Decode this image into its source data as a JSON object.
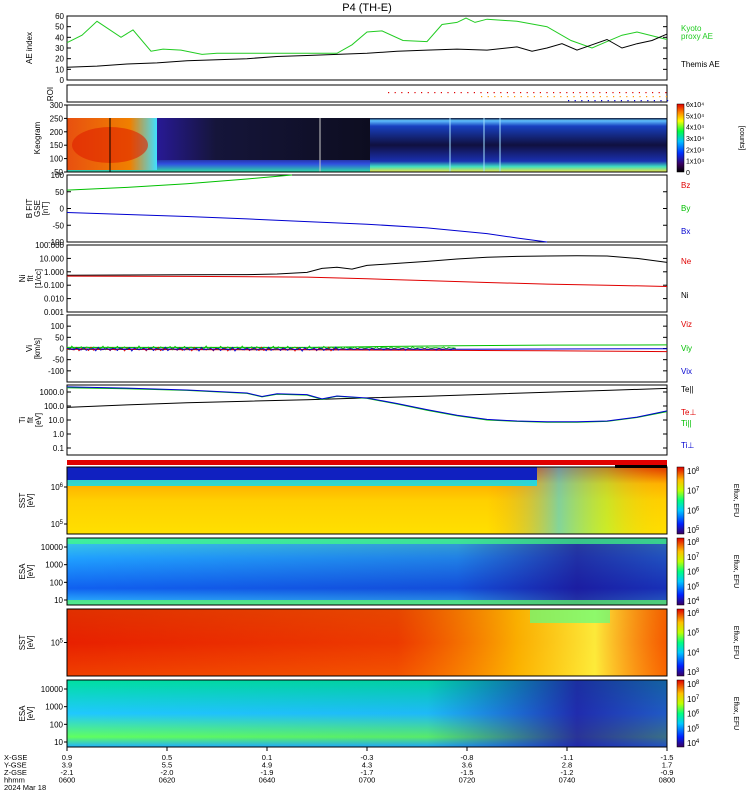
{
  "title": "P4 (TH-E)",
  "colors": {
    "black": "#000000",
    "red": "#e00000",
    "green": "#00c000",
    "blue": "#0000d0",
    "kyoto": "#22cc22"
  },
  "chart_data": [
    {
      "id": "ae",
      "type": "line",
      "ylabel": "AE index",
      "ylim": [
        0,
        60
      ],
      "yticks": [
        "0",
        "10",
        "20",
        "30",
        "40",
        "50",
        "60"
      ],
      "right_labels": [
        {
          "text": "Kyoto",
          "color": "#22cc22"
        },
        {
          "text": "proxy AE",
          "color": "#22cc22"
        },
        {
          "text": "Themis AE",
          "color": "#000000"
        }
      ],
      "series": [
        {
          "name": "Kyoto proxy AE",
          "color": "#22cc22",
          "x": [
            0,
            5,
            10,
            18,
            22,
            28,
            32,
            38,
            45,
            50,
            60,
            70,
            80,
            90,
            95,
            100,
            105,
            112,
            120,
            125,
            130,
            133,
            136,
            140,
            150,
            160,
            168,
            175,
            180,
            185,
            190,
            200
          ],
          "y": [
            35,
            42,
            55,
            40,
            47,
            27,
            29,
            28,
            24,
            25,
            25,
            25,
            25,
            25,
            33,
            45,
            46,
            37,
            36,
            52,
            54,
            58,
            54,
            57,
            55,
            50,
            37,
            30,
            36,
            42,
            45,
            38
          ]
        },
        {
          "name": "Themis AE",
          "color": "#000000",
          "x": [
            0,
            10,
            20,
            30,
            40,
            50,
            60,
            70,
            80,
            90,
            100,
            110,
            120,
            130,
            140,
            150,
            155,
            160,
            165,
            170,
            175,
            180,
            185,
            190,
            195,
            200
          ],
          "y": [
            12,
            13,
            15,
            16,
            18,
            19,
            20,
            22,
            23,
            24,
            25,
            27,
            28,
            29,
            28,
            31,
            27,
            30,
            34,
            28,
            33,
            38,
            30,
            34,
            37,
            43
          ]
        }
      ]
    },
    {
      "id": "roi",
      "type": "scatter",
      "ylabel": "ROI",
      "rows": [
        {
          "color": "#e00000",
          "x_start": 107
        },
        {
          "color": "#ff9900",
          "x_start": 138
        },
        {
          "color": "#0000d0",
          "x_start": 167
        }
      ]
    },
    {
      "id": "keogram",
      "type": "heatmap",
      "ylabel": "Keogram",
      "ylim": [
        50,
        300
      ],
      "yticks": [
        "50",
        "100",
        "150",
        "200",
        "250",
        "300"
      ],
      "colorbar": {
        "label": "[counts]",
        "ticks": [
          "0",
          "1x10⁴",
          "2x10⁴",
          "3x10⁴",
          "4x10⁴",
          "5x10⁴",
          "6x10⁴"
        ]
      }
    },
    {
      "id": "bfield",
      "type": "line",
      "ylabel": "B FIT\nGSE\n[nT]",
      "ylim": [
        -100,
        100
      ],
      "yticks": [
        "-100",
        "-50",
        "0",
        "50",
        "100"
      ],
      "right_labels": [
        {
          "text": "Bz",
          "color": "#e00000"
        },
        {
          "text": "By",
          "color": "#00c000"
        },
        {
          "text": "Bx",
          "color": "#0000d0"
        }
      ],
      "series": [
        {
          "name": "By",
          "color": "#00c000",
          "x": [
            0,
            20,
            40,
            60,
            75
          ],
          "y": [
            55,
            63,
            74,
            88,
            100
          ]
        },
        {
          "name": "Bx",
          "color": "#0000d0",
          "x": [
            0,
            20,
            40,
            60,
            80,
            100,
            120,
            140,
            150,
            160
          ],
          "y": [
            -12,
            -18,
            -24,
            -31,
            -39,
            -47,
            -58,
            -75,
            -88,
            -100
          ]
        }
      ]
    },
    {
      "id": "density",
      "type": "line",
      "ylabel": "Ni\nfit\n[1/cc]",
      "log": true,
      "ylim_exp": [
        -3,
        2
      ],
      "yticks": [
        "0.001",
        "0.010",
        "0.100",
        "1.000",
        "10.000",
        "100.000"
      ],
      "right_labels": [
        {
          "text": "Ne",
          "color": "#e00000"
        },
        {
          "text": "Ni",
          "color": "#000000"
        }
      ],
      "series": [
        {
          "name": "Ni",
          "color": "#000000",
          "x": [
            0,
            20,
            40,
            60,
            70,
            80,
            85,
            90,
            95,
            100,
            110,
            120,
            130,
            140,
            150,
            160,
            170,
            180,
            190,
            200
          ],
          "y": [
            0.55,
            0.58,
            0.6,
            0.62,
            0.68,
            0.9,
            1.8,
            2.2,
            1.6,
            3.0,
            4.2,
            6.0,
            9.0,
            12.0,
            14.0,
            15.0,
            16.0,
            15.0,
            10.0,
            5.0
          ]
        },
        {
          "name": "Ne",
          "color": "#e00000",
          "x": [
            0,
            40,
            80,
            100,
            120,
            140,
            160,
            180,
            200
          ],
          "y": [
            0.48,
            0.45,
            0.4,
            0.3,
            0.22,
            0.16,
            0.12,
            0.1,
            0.08
          ]
        }
      ]
    },
    {
      "id": "velocity",
      "type": "line",
      "ylabel": "Vi\n[km/s]",
      "ylim": [
        -150,
        150
      ],
      "yticks": [
        "-100",
        "-50",
        "0",
        "50",
        "100"
      ],
      "right_labels": [
        {
          "text": "Viz",
          "color": "#e00000"
        },
        {
          "text": "Viy",
          "color": "#00c000"
        },
        {
          "text": "Vix",
          "color": "#0000d0"
        }
      ],
      "series": [
        {
          "name": "Viy",
          "color": "#00c000",
          "x": [
            0,
            80,
            100,
            130,
            160,
            200
          ],
          "y": [
            5,
            5,
            8,
            12,
            15,
            16
          ]
        },
        {
          "name": "Vix",
          "color": "#0000d0",
          "x": [
            0,
            80,
            130,
            200
          ],
          "y": [
            -2,
            -4,
            -3,
            -1
          ]
        },
        {
          "name": "Viz",
          "color": "#e00000",
          "x": [
            0,
            80,
            120,
            160,
            200
          ],
          "y": [
            -4,
            -6,
            -8,
            -10,
            -14
          ]
        }
      ]
    },
    {
      "id": "temperature",
      "type": "line",
      "ylabel": "Ti\nfit\n[eV]",
      "log": true,
      "ylim_exp": [
        -1.5,
        3.5
      ],
      "yticks": [
        "0.1",
        "1.0",
        "10.0",
        "100.0",
        "1000.0"
      ],
      "right_labels": [
        {
          "text": "Te||",
          "color": "#000000"
        },
        {
          "text": "Te⊥",
          "color": "#e00000"
        },
        {
          "text": "Ti||",
          "color": "#00c000"
        },
        {
          "text": "Ti⊥",
          "color": "#0000d0"
        }
      ],
      "series": [
        {
          "name": "Te||",
          "color": "#000000",
          "x": [
            0,
            20,
            40,
            60,
            80,
            100,
            120,
            140,
            160,
            180,
            200
          ],
          "y": [
            80,
            120,
            170,
            220,
            280,
            380,
            500,
            700,
            950,
            1300,
            1800
          ]
        },
        {
          "name": "Ti||",
          "color": "#00c000",
          "x": [
            0,
            20,
            40,
            60,
            65,
            70,
            80,
            85,
            90,
            100,
            110,
            120,
            130,
            140,
            150,
            160,
            170,
            180,
            190,
            200
          ],
          "y": [
            2000,
            1700,
            1300,
            800,
            450,
            700,
            600,
            300,
            500,
            350,
            140,
            50,
            20,
            10,
            8,
            7,
            7,
            8,
            15,
            40
          ]
        },
        {
          "name": "Ti⊥",
          "color": "#0000d0",
          "x": [
            0,
            20,
            40,
            60,
            65,
            70,
            80,
            85,
            90,
            100,
            110,
            120,
            130,
            140,
            150,
            160,
            170,
            180,
            190,
            200
          ],
          "y": [
            2300,
            1900,
            1400,
            850,
            480,
            750,
            650,
            320,
            520,
            370,
            150,
            55,
            22,
            11,
            8.5,
            7.5,
            7.5,
            8.5,
            16,
            45
          ]
        }
      ]
    },
    {
      "id": "sst-eflux-1",
      "type": "heatmap",
      "ylabel": "SST\n[eV]",
      "yticks_exp": [
        {
          "base": "10",
          "exp": "5"
        },
        {
          "base": "10",
          "exp": "6"
        }
      ],
      "colorbar": {
        "label": "Eflux, EFU",
        "ticks_exp": [
          "5",
          "6",
          "7",
          "8"
        ]
      }
    },
    {
      "id": "esa-eflux-1",
      "type": "heatmap",
      "ylabel": "ESA\n[eV]",
      "yticks": [
        "10",
        "100",
        "1000",
        "10000"
      ],
      "colorbar": {
        "label": "Eflux, EFU",
        "ticks_exp": [
          "4",
          "5",
          "6",
          "7",
          "8"
        ]
      }
    },
    {
      "id": "sst-eflux-2",
      "type": "heatmap",
      "ylabel": "SST\n[eV]",
      "yticks_exp": [
        {
          "base": "10",
          "exp": "5"
        }
      ],
      "colorbar": {
        "label": "Eflux, EFU",
        "ticks_exp": [
          "3",
          "4",
          "5",
          "6"
        ]
      }
    },
    {
      "id": "esa-eflux-2",
      "type": "heatmap",
      "ylabel": "ESA\n[eV]",
      "yticks": [
        "10",
        "100",
        "1000",
        "10000"
      ],
      "colorbar": {
        "label": "Eflux, EFU",
        "ticks_exp": [
          "4",
          "5",
          "6",
          "7",
          "8"
        ]
      }
    }
  ],
  "xaxis": {
    "row_labels": [
      "X-GSE",
      "Y-GSE",
      "Z-GSE",
      "hhmm",
      "2024 Mar 18"
    ],
    "columns": [
      {
        "x": "0.9",
        "y": "3.9",
        "z": "-2.1",
        "t": "0600"
      },
      {
        "x": "0.5",
        "y": "5.5",
        "z": "-2.0",
        "t": "0620"
      },
      {
        "x": "0.1",
        "y": "4.9",
        "z": "-1.9",
        "t": "0640"
      },
      {
        "x": "-0.3",
        "y": "4.3",
        "z": "-1.7",
        "t": "0700"
      },
      {
        "x": "-0.8",
        "y": "3.6",
        "z": "-1.5",
        "t": "0720"
      },
      {
        "x": "-1.1",
        "y": "2.8",
        "z": "-1.2",
        "t": "0740"
      },
      {
        "x": "-1.5",
        "y": "1.7",
        "z": "-0.9",
        "t": "0800"
      }
    ]
  }
}
